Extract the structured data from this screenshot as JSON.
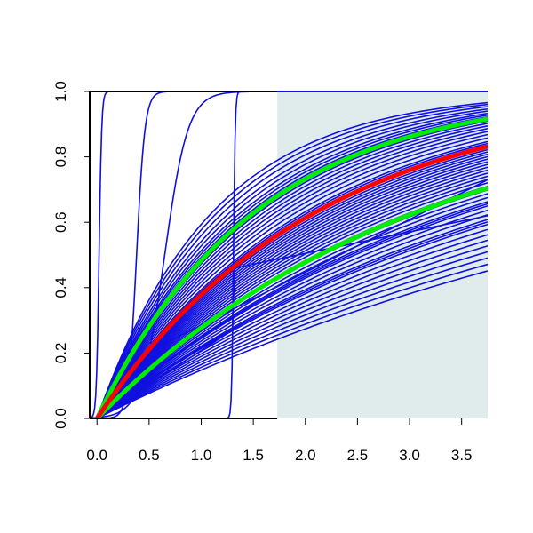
{
  "chart_data": {
    "type": "line",
    "title": "",
    "xlabel": "",
    "ylabel": "",
    "xlim": [
      -0.07,
      3.75
    ],
    "ylim": [
      0,
      1
    ],
    "grid": false,
    "legend": "none",
    "x_ticks": [
      "0.0",
      "0.5",
      "1.0",
      "1.5",
      "2.0",
      "2.5",
      "3.0",
      "3.5"
    ],
    "y_ticks": [
      "0.0",
      "0.2",
      "0.4",
      "0.6",
      "0.8",
      "1.0"
    ],
    "shaded_region": {
      "x_from": 1.73,
      "x_to": 3.75,
      "y_from": 0,
      "y_to": 1,
      "color": "#e0ecec"
    },
    "colors": {
      "sample": "#1010e0",
      "median": "#ff0000",
      "band": "#00ee00",
      "shade": "#e0ecec",
      "axis": "#000000"
    },
    "steep_series": [
      {
        "kind": "logistic",
        "center": 0.02,
        "steepness": 80
      },
      {
        "kind": "logistic",
        "center": 0.38,
        "steepness": 25
      },
      {
        "kind": "logistic",
        "center": 0.65,
        "steepness": 9
      },
      {
        "kind": "logistic",
        "center": 1.31,
        "steepness": 120
      }
    ],
    "kinked_series": [
      {
        "x": [
          0,
          0.25,
          0.27,
          0.29,
          3.75
        ],
        "y": [
          0,
          0.14,
          0.16,
          0.17,
          0.73
        ]
      },
      {
        "x": [
          0,
          1.3,
          1.32,
          3.75
        ],
        "y": [
          0,
          0.27,
          0.46,
          0.62
        ]
      }
    ],
    "sample_rates": [
      0.16,
      0.17,
      0.18,
      0.19,
      0.2,
      0.21,
      0.22,
      0.23,
      0.24,
      0.245,
      0.25,
      0.26,
      0.27,
      0.28,
      0.285,
      0.29,
      0.3,
      0.31,
      0.32,
      0.33,
      0.34,
      0.35,
      0.36,
      0.37,
      0.38,
      0.39,
      0.4,
      0.41,
      0.42,
      0.43,
      0.44,
      0.45,
      0.46,
      0.47,
      0.48,
      0.49,
      0.5,
      0.52,
      0.54,
      0.56,
      0.58,
      0.6,
      0.62,
      0.64,
      0.66,
      0.68,
      0.7,
      0.72,
      0.75,
      0.78,
      0.82,
      0.86,
      0.9
    ],
    "median_rate": 0.475,
    "upper_band_rate": 0.66,
    "lower_band_rate": 0.325
  }
}
